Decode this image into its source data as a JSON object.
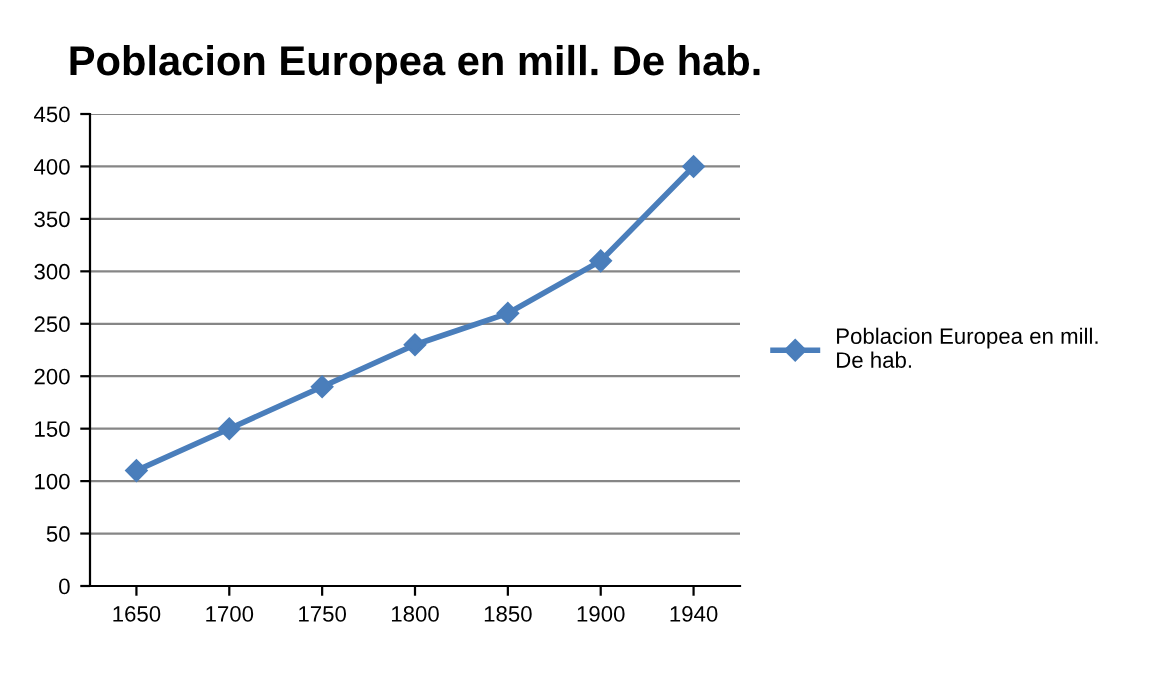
{
  "chart_data": {
    "type": "line",
    "title": "Poblacion Europea en mill. De hab.",
    "categories": [
      "1650",
      "1700",
      "1750",
      "1800",
      "1850",
      "1900",
      "1940"
    ],
    "series": [
      {
        "name": "Poblacion Europea en mill. De hab.",
        "color": "#4a7ebb",
        "values": [
          110,
          150,
          190,
          230,
          260,
          310,
          400
        ]
      }
    ],
    "ylim": [
      0,
      450
    ],
    "yticks": [
      0,
      50,
      100,
      150,
      200,
      250,
      300,
      350,
      400,
      450
    ],
    "grid": "y",
    "legend": "right",
    "marker": "diamond",
    "line_style": "solid"
  }
}
